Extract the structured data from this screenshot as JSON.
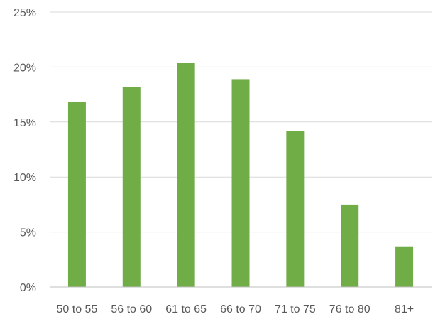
{
  "chart_data": {
    "type": "bar",
    "categories": [
      "50 to 55",
      "56 to 60",
      "61 to 65",
      "66 to 70",
      "71 to 75",
      "76 to 80",
      "81+"
    ],
    "values": [
      16.8,
      18.2,
      20.4,
      18.9,
      14.2,
      7.5,
      3.7
    ],
    "value_unit": "%",
    "ylim": [
      0,
      25
    ],
    "yticks": [
      0,
      5,
      10,
      15,
      20,
      25
    ],
    "ytick_labels": [
      "0%",
      "5%",
      "10%",
      "15%",
      "20%",
      "25%"
    ],
    "title": "",
    "xlabel": "",
    "ylabel": "",
    "grid": true,
    "legend": "none",
    "bar_color": "#70ad47"
  }
}
